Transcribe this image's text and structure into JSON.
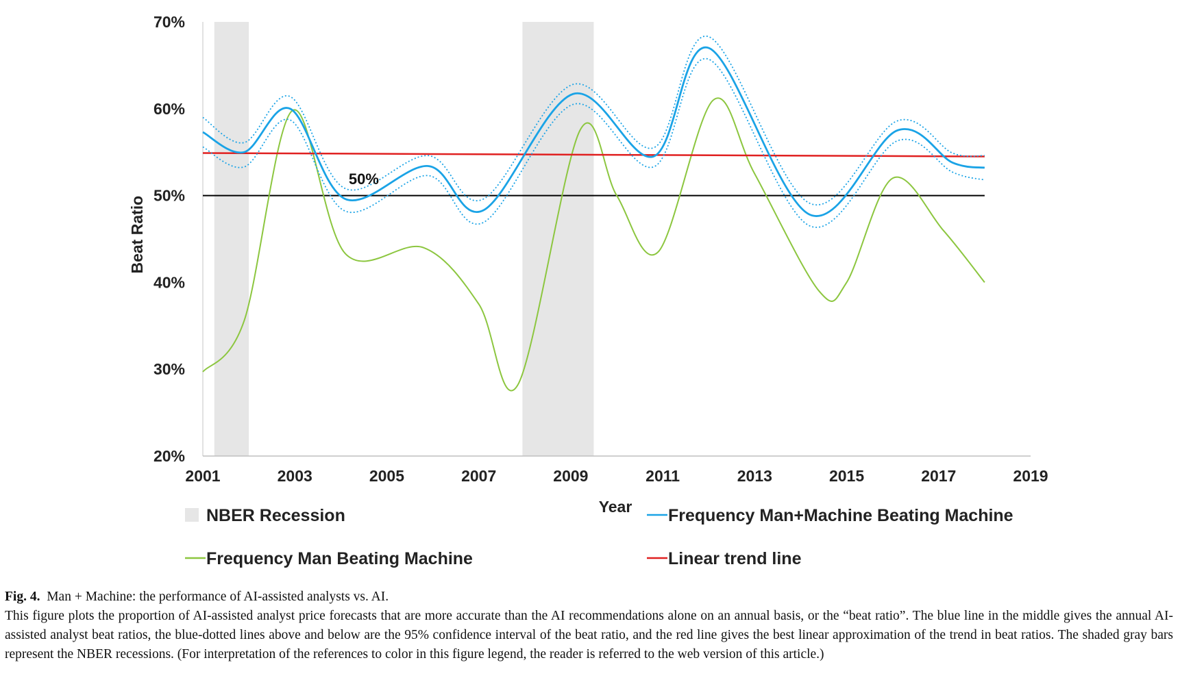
{
  "chart_data": {
    "type": "line",
    "xlabel": "Year",
    "ylabel": "Beat Ratio",
    "x_ticks": [
      "2001",
      "2003",
      "2005",
      "2007",
      "2009",
      "2011",
      "2013",
      "2015",
      "2017",
      "2019"
    ],
    "y_ticks": [
      "20%",
      "30%",
      "40%",
      "50%",
      "60%",
      "70%"
    ],
    "xlim": [
      2001,
      2019
    ],
    "ylim": [
      20,
      70
    ],
    "reference_line": {
      "value": 50,
      "label": "50%",
      "color": "#000000"
    },
    "recessions": [
      {
        "start": 2001.25,
        "end": 2002.0
      },
      {
        "start": 2007.95,
        "end": 2009.5
      }
    ],
    "series": [
      {
        "name": "Frequency Man+Machine Beating Machine",
        "color": "#1aa3e6",
        "points": [
          [
            2001,
            57.3
          ],
          [
            2001.9,
            55.0
          ],
          [
            2002.9,
            60.0
          ],
          [
            2004.1,
            49.6
          ],
          [
            2005.9,
            53.4
          ],
          [
            2007.1,
            48.3
          ],
          [
            2009.05,
            61.7
          ],
          [
            2010.8,
            54.5
          ],
          [
            2012.0,
            67.0
          ],
          [
            2014.2,
            47.8
          ],
          [
            2016.1,
            57.5
          ],
          [
            2017.3,
            53.8
          ],
          [
            2018,
            53.2
          ]
        ],
        "ci_upper": [
          [
            2001,
            59.0
          ],
          [
            2001.9,
            56.1
          ],
          [
            2002.9,
            61.4
          ],
          [
            2004.1,
            50.8
          ],
          [
            2005.9,
            54.6
          ],
          [
            2007.1,
            49.6
          ],
          [
            2009.05,
            62.8
          ],
          [
            2010.8,
            55.5
          ],
          [
            2012.0,
            68.3
          ],
          [
            2014.2,
            49.1
          ],
          [
            2016.1,
            58.6
          ],
          [
            2017.3,
            54.9
          ],
          [
            2018,
            54.6
          ]
        ],
        "ci_lower": [
          [
            2001,
            55.6
          ],
          [
            2001.9,
            53.3
          ],
          [
            2002.9,
            58.7
          ],
          [
            2004.1,
            48.2
          ],
          [
            2005.9,
            52.3
          ],
          [
            2007.1,
            46.9
          ],
          [
            2009.05,
            60.5
          ],
          [
            2010.8,
            53.3
          ],
          [
            2012.0,
            65.7
          ],
          [
            2014.2,
            46.5
          ],
          [
            2016.1,
            56.3
          ],
          [
            2017.3,
            52.7
          ],
          [
            2018,
            51.8
          ]
        ]
      },
      {
        "name": "Frequency Man Beating Machine",
        "color": "#8cc63f",
        "points": [
          [
            2001,
            29.7
          ],
          [
            2001.9,
            35.6
          ],
          [
            2002.95,
            59.8
          ],
          [
            2004.1,
            43.3
          ],
          [
            2005.8,
            44.0
          ],
          [
            2007.0,
            37.5
          ],
          [
            2007.85,
            28.2
          ],
          [
            2009.2,
            57.5
          ],
          [
            2010.0,
            50.0
          ],
          [
            2010.9,
            43.5
          ],
          [
            2012.1,
            61.0
          ],
          [
            2013.0,
            52.5
          ],
          [
            2014.4,
            39.0
          ],
          [
            2015.0,
            40.0
          ],
          [
            2016.0,
            52.0
          ],
          [
            2017.1,
            46.0
          ],
          [
            2018,
            40.0
          ]
        ]
      },
      {
        "name": "Linear trend line",
        "color": "#e02020",
        "points": [
          [
            2001,
            54.9
          ],
          [
            2018,
            54.5
          ]
        ]
      }
    ],
    "legend": [
      {
        "label": "NBER Recession",
        "kind": "swatch",
        "color": "#e6e6e6"
      },
      {
        "label": "Frequency Man+Machine Beating Machine",
        "kind": "line",
        "color": "#1aa3e6"
      },
      {
        "label": "Frequency Man Beating Machine",
        "kind": "line",
        "color": "#8cc63f"
      },
      {
        "label": "Linear trend line",
        "kind": "line",
        "color": "#e02020"
      }
    ]
  },
  "caption": {
    "label": "Fig. 4.",
    "title": "Man + Machine: the performance of AI-assisted analysts vs. AI.",
    "body": "This figure plots the proportion of AI-assisted analyst price forecasts that are more accurate than the AI recommendations alone on an annual basis, or the “beat ratio”. The blue line in the middle gives the annual AI-assisted analyst beat ratios, the blue-dotted lines above and below are the 95% confidence interval of the beat ratio, and the red line gives the best linear approximation of the trend in beat ratios. The shaded gray bars represent the NBER recessions. (For interpretation of the references to color in this figure legend, the reader is referred to the web version of this article.)"
  }
}
